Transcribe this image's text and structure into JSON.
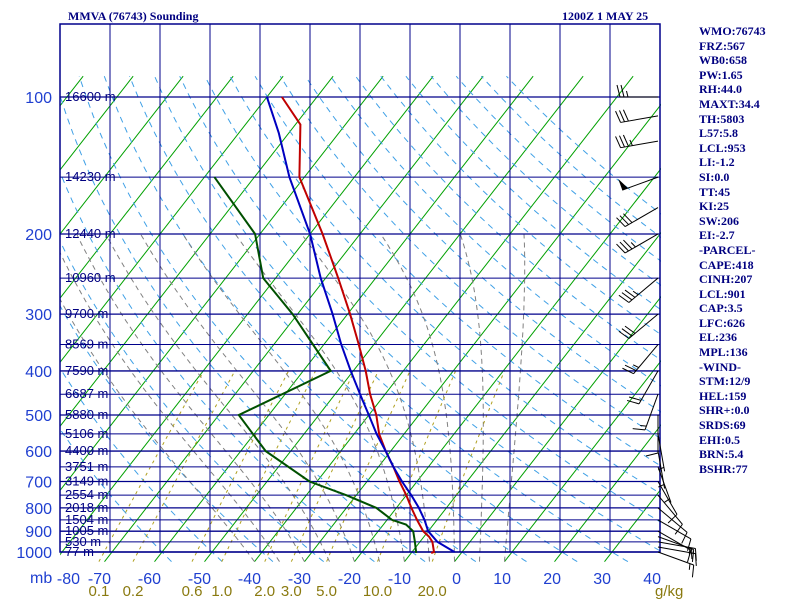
{
  "header": {
    "title": "MMVA (76743) Sounding",
    "time": "1200Z  1 MAY 25"
  },
  "stats": [
    "WMO:76743",
    "FRZ:567",
    "WB0:658",
    "PW:1.65",
    "RH:44.0",
    "MAXT:34.4",
    "TH:5803",
    "L57:5.8",
    "LCL:953",
    "LI:-1.2",
    "SI:0.0",
    "TT:45",
    "KI:25",
    "SW:206",
    "EI:-2.7",
    "-PARCEL-",
    "CAPE:418",
    "CINH:207",
    "LCL:901",
    "CAP:3.5",
    "LFC:626",
    "EL:236",
    "MPL:136",
    "-WIND-",
    "STM:12/9",
    "HEL:159",
    "SHR+:0.0",
    "SRDS:69",
    "EHI:0.5",
    "BRN:5.4",
    "BSHR:77"
  ],
  "chart_data": {
    "type": "skew-t",
    "pressure_unit": "mb",
    "mixing_ratio_unit": "g/kg",
    "pressure_ticks": [
      100,
      200,
      300,
      400,
      500,
      600,
      700,
      800,
      900,
      1000
    ],
    "temperature_ticks": [
      -80,
      -70,
      -60,
      -50,
      -40,
      -30,
      -20,
      -10,
      0,
      10,
      20,
      30,
      40
    ],
    "mixing_ratio_labels": [
      "0.1",
      "0.2",
      "0.6",
      "1.0",
      "2.0",
      "3.0",
      "5.0",
      "10.0",
      "20.0"
    ],
    "mixing_ratio_values": [
      0.1,
      0.2,
      0.6,
      1.0,
      2.0,
      3.0,
      5.0,
      10.0,
      20.0
    ],
    "height_labels": [
      {
        "p": 100,
        "label": "16600 m"
      },
      {
        "p": 150,
        "label": "14230 m"
      },
      {
        "p": 200,
        "label": "12440 m"
      },
      {
        "p": 250,
        "label": "10960 m"
      },
      {
        "p": 300,
        "label": "9700 m"
      },
      {
        "p": 350,
        "label": "8569 m"
      },
      {
        "p": 400,
        "label": "7590 m"
      },
      {
        "p": 450,
        "label": "6687 m"
      },
      {
        "p": 500,
        "label": "5880 m"
      },
      {
        "p": 550,
        "label": "5106 m"
      },
      {
        "p": 600,
        "label": "4400 m"
      },
      {
        "p": 650,
        "label": "3751 m"
      },
      {
        "p": 700,
        "label": "3149 m"
      },
      {
        "p": 750,
        "label": "2554 m"
      },
      {
        "p": 800,
        "label": "2018 m"
      },
      {
        "p": 850,
        "label": "1504 m"
      },
      {
        "p": 900,
        "label": "1005 m"
      },
      {
        "p": 950,
        "label": "530 m"
      },
      {
        "p": 1000,
        "label": "77 m"
      }
    ],
    "colors": {
      "grid": "#00008b",
      "isotherm": "#00a000",
      "dry_adiabat": "#3fa0e6",
      "moist_adiabat": "#808080",
      "mixing_ratio": "#b0a020",
      "temperature": "#c00000",
      "dewpoint": "#005000",
      "parcel": "#0000c0",
      "wind_barb": "#000000"
    },
    "temperature_profile": [
      {
        "p": 1005,
        "t": 24
      },
      {
        "p": 1000,
        "t": 24.4
      },
      {
        "p": 950,
        "t": 22.5
      },
      {
        "p": 925,
        "t": 21
      },
      {
        "p": 900,
        "t": 19
      },
      {
        "p": 850,
        "t": 16
      },
      {
        "p": 800,
        "t": 13
      },
      {
        "p": 750,
        "t": 10
      },
      {
        "p": 700,
        "t": 6.5
      },
      {
        "p": 650,
        "t": 3
      },
      {
        "p": 600,
        "t": -1
      },
      {
        "p": 550,
        "t": -5
      },
      {
        "p": 500,
        "t": -8.5
      },
      {
        "p": 450,
        "t": -13
      },
      {
        "p": 400,
        "t": -17.5
      },
      {
        "p": 350,
        "t": -23
      },
      {
        "p": 300,
        "t": -29.5
      },
      {
        "p": 250,
        "t": -37.5
      },
      {
        "p": 200,
        "t": -47.5
      },
      {
        "p": 150,
        "t": -61
      },
      {
        "p": 115,
        "t": -69
      },
      {
        "p": 100,
        "t": -77
      }
    ],
    "dewpoint_profile": [
      {
        "p": 1005,
        "td": 21
      },
      {
        "p": 950,
        "td": 19
      },
      {
        "p": 900,
        "td": 17
      },
      {
        "p": 870,
        "td": 14.5
      },
      {
        "p": 850,
        "td": 11
      },
      {
        "p": 800,
        "td": 6
      },
      {
        "p": 750,
        "td": -2
      },
      {
        "p": 700,
        "td": -11.5
      },
      {
        "p": 600,
        "td": -25
      },
      {
        "p": 500,
        "td": -36
      },
      {
        "p": 400,
        "td": -24.5
      },
      {
        "p": 300,
        "td": -41
      },
      {
        "p": 250,
        "td": -52.5
      },
      {
        "p": 200,
        "td": -61
      },
      {
        "p": 150,
        "td": -78
      }
    ],
    "parcel_profile": [
      {
        "p": 1000,
        "t": 28.5
      },
      {
        "p": 950,
        "t": 23.5
      },
      {
        "p": 900,
        "t": 20
      },
      {
        "p": 850,
        "t": 17.5
      },
      {
        "p": 800,
        "t": 14.5
      },
      {
        "p": 750,
        "t": 11
      },
      {
        "p": 700,
        "t": 7
      },
      {
        "p": 650,
        "t": 3
      },
      {
        "p": 600,
        "t": -1
      },
      {
        "p": 550,
        "t": -5.5
      },
      {
        "p": 500,
        "t": -10
      },
      {
        "p": 450,
        "t": -15
      },
      {
        "p": 400,
        "t": -20.5
      },
      {
        "p": 350,
        "t": -26.5
      },
      {
        "p": 300,
        "t": -33
      },
      {
        "p": 250,
        "t": -41
      },
      {
        "p": 200,
        "t": -50
      },
      {
        "p": 150,
        "t": -63
      },
      {
        "p": 120,
        "t": -72
      },
      {
        "p": 100,
        "t": -80
      }
    ],
    "wind_barbs": [
      {
        "p": 1000,
        "dir": 110,
        "spd": 15
      },
      {
        "p": 975,
        "dir": 100,
        "spd": 15
      },
      {
        "p": 950,
        "dir": 100,
        "spd": 15
      },
      {
        "p": 925,
        "dir": 110,
        "spd": 15
      },
      {
        "p": 900,
        "dir": 120,
        "spd": 10
      },
      {
        "p": 850,
        "dir": 120,
        "spd": 10
      },
      {
        "p": 800,
        "dir": 130,
        "spd": 10
      },
      {
        "p": 750,
        "dir": 140,
        "spd": 10
      },
      {
        "p": 700,
        "dir": 150,
        "spd": 10
      },
      {
        "p": 650,
        "dir": 160,
        "spd": 5
      },
      {
        "p": 600,
        "dir": 170,
        "spd": 5
      },
      {
        "p": 550,
        "dir": 170,
        "spd": 5
      },
      {
        "p": 500,
        "dir": 180,
        "spd": 10
      },
      {
        "p": 450,
        "dir": 200,
        "spd": 15
      },
      {
        "p": 400,
        "dir": 210,
        "spd": 20
      },
      {
        "p": 350,
        "dir": 220,
        "spd": 25
      },
      {
        "p": 300,
        "dir": 230,
        "spd": 30
      },
      {
        "p": 250,
        "dir": 230,
        "spd": 35
      },
      {
        "p": 200,
        "dir": 240,
        "spd": 35
      },
      {
        "p": 175,
        "dir": 240,
        "spd": 30
      },
      {
        "p": 150,
        "dir": 250,
        "spd": 50
      },
      {
        "p": 125,
        "dir": 260,
        "spd": 35
      },
      {
        "p": 110,
        "dir": 260,
        "spd": 30
      },
      {
        "p": 100,
        "dir": 270,
        "spd": 25
      }
    ]
  }
}
